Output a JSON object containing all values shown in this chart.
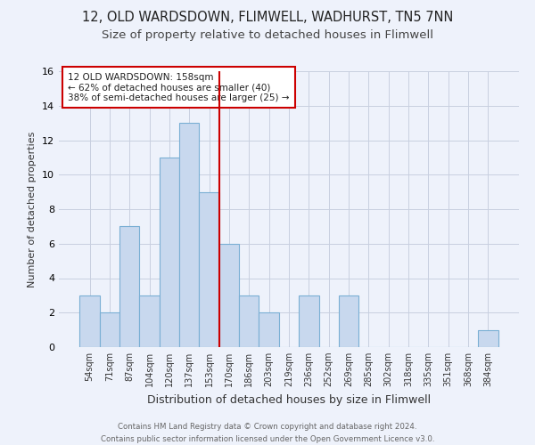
{
  "title": "12, OLD WARDSDOWN, FLIMWELL, WADHURST, TN5 7NN",
  "subtitle": "Size of property relative to detached houses in Flimwell",
  "xlabel": "Distribution of detached houses by size in Flimwell",
  "ylabel": "Number of detached properties",
  "bar_labels": [
    "54sqm",
    "71sqm",
    "87sqm",
    "104sqm",
    "120sqm",
    "137sqm",
    "153sqm",
    "170sqm",
    "186sqm",
    "203sqm",
    "219sqm",
    "236sqm",
    "252sqm",
    "269sqm",
    "285sqm",
    "302sqm",
    "318sqm",
    "335sqm",
    "351sqm",
    "368sqm",
    "384sqm"
  ],
  "bar_values": [
    3,
    2,
    7,
    3,
    11,
    13,
    9,
    6,
    3,
    2,
    0,
    3,
    0,
    3,
    0,
    0,
    0,
    0,
    0,
    0,
    1
  ],
  "bar_color": "#c8d8ee",
  "bar_edge_color": "#7aafd4",
  "vline_color": "#cc0000",
  "ylim": [
    0,
    16
  ],
  "yticks": [
    0,
    2,
    4,
    6,
    8,
    10,
    12,
    14,
    16
  ],
  "annotation_title": "12 OLD WARDSDOWN: 158sqm",
  "annotation_line1": "← 62% of detached houses are smaller (40)",
  "annotation_line2": "38% of semi-detached houses are larger (25) →",
  "annotation_box_color": "#ffffff",
  "annotation_box_edge": "#cc0000",
  "footer_line1": "Contains HM Land Registry data © Crown copyright and database right 2024.",
  "footer_line2": "Contains public sector information licensed under the Open Government Licence v3.0.",
  "bg_color": "#eef2fb",
  "plot_bg_color": "#eef2fb",
  "title_fontsize": 10.5,
  "subtitle_fontsize": 9.5
}
